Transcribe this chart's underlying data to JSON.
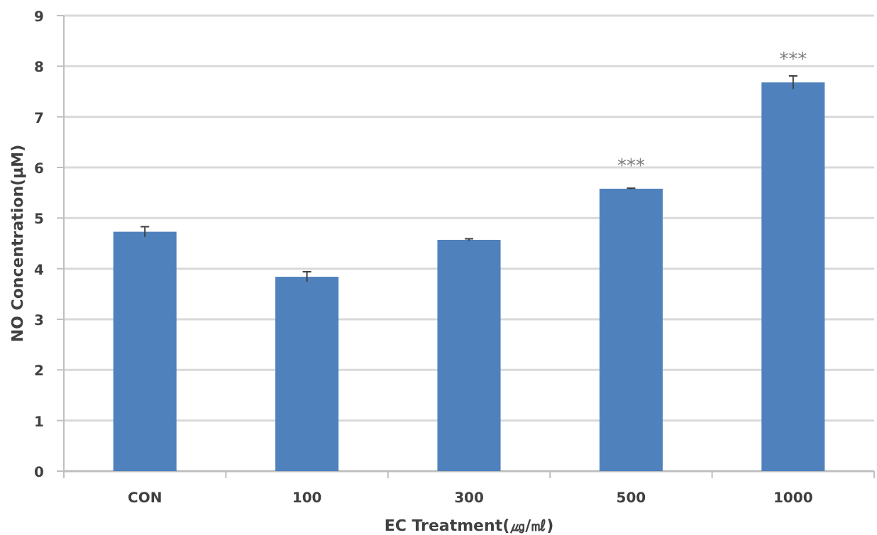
{
  "chart_data": {
    "type": "bar",
    "xlabel": "EC Treatment(㎍/㎖)",
    "ylabel": "NO Concentration(μM)",
    "categories": [
      "CON",
      "100",
      "300",
      "500",
      "1000"
    ],
    "values": [
      4.73,
      3.84,
      4.57,
      5.58,
      7.68
    ],
    "errors": [
      0.1,
      0.1,
      0.02,
      0.01,
      0.13
    ],
    "color": "#4f81bd",
    "ylim": [
      0,
      9
    ],
    "yticks": [
      0,
      1,
      2,
      3,
      4,
      5,
      6,
      7,
      8,
      9
    ],
    "grid": "y",
    "annotations": [
      {
        "text": "***",
        "x": "500",
        "y": 5.58
      },
      {
        "text": "***",
        "x": "1000",
        "y": 7.68
      }
    ]
  }
}
